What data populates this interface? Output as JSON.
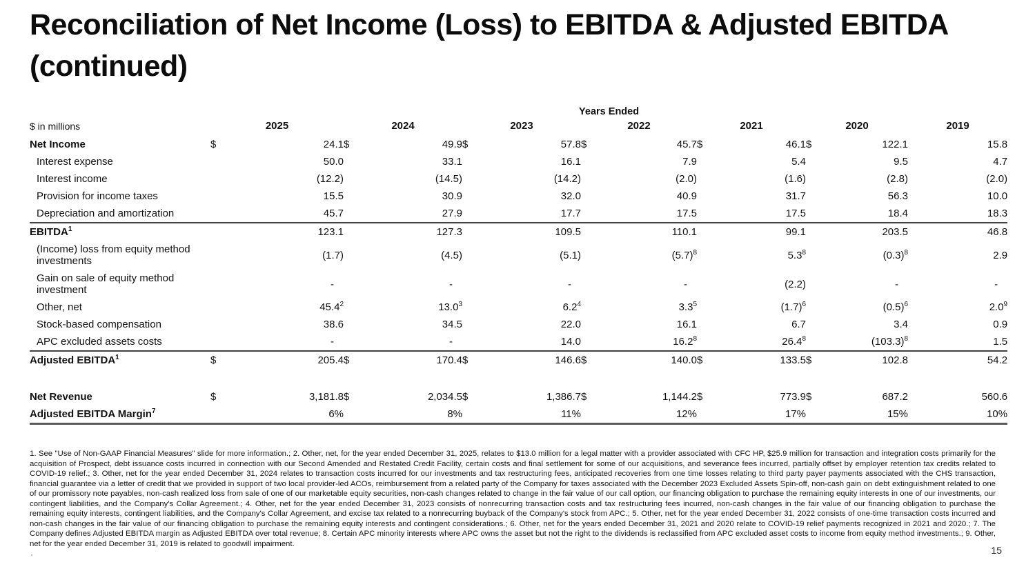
{
  "page": {
    "title": "Reconciliation of Net Income (Loss) to EBITDA & Adjusted EBITDA (continued)",
    "page_number": "15"
  },
  "table": {
    "units_label": "$ in millions",
    "group_header": "Years Ended",
    "currency_symbol": "$",
    "years": [
      "2025",
      "2024",
      "2023",
      "2022",
      "2021",
      "2020",
      "2019"
    ],
    "rows": [
      {
        "label": "Net Income",
        "bold": true,
        "dollar": true,
        "values": [
          "24.1",
          "49.9",
          "57.8",
          "45.7",
          "46.1",
          "122.1",
          "15.8"
        ]
      },
      {
        "label": "Interest expense",
        "indent": true,
        "values": [
          "50.0",
          "33.1",
          "16.1",
          "7.9",
          "5.4",
          "9.5",
          "4.7"
        ]
      },
      {
        "label": "Interest income",
        "indent": true,
        "values": [
          "(12.2)",
          "(14.5)",
          "(14.2)",
          "(2.0)",
          "(1.6)",
          "(2.8)",
          "(2.0)"
        ]
      },
      {
        "label": "Provision for income taxes",
        "indent": true,
        "values": [
          "15.5",
          "30.9",
          "32.0",
          "40.9",
          "31.7",
          "56.3",
          "10.0"
        ]
      },
      {
        "label": "Depreciation and amortization",
        "indent": true,
        "values": [
          "45.7",
          "27.9",
          "17.7",
          "17.5",
          "17.5",
          "18.4",
          "18.3"
        ]
      },
      {
        "label": "EBITDA",
        "label_sup": "1",
        "bold": true,
        "rule_above": true,
        "values": [
          "123.1",
          "127.3",
          "109.5",
          "110.1",
          "99.1",
          "203.5",
          "46.8"
        ]
      },
      {
        "label": "(Income) loss from equity method investments",
        "indent": true,
        "values": [
          "(1.7)",
          "(4.5)",
          "(5.1)",
          "(5.7)^8",
          "5.3^8",
          "(0.3)^8",
          "2.9"
        ]
      },
      {
        "label": "Gain on sale of equity method investment",
        "indent": true,
        "values": [
          "-",
          "-",
          "-",
          "-",
          "(2.2)",
          "-",
          "-"
        ]
      },
      {
        "label": "Other, net",
        "indent": true,
        "values": [
          "45.4^2",
          "13.0^3",
          "6.2^4",
          "3.3^5",
          "(1.7)^6",
          "(0.5)^6",
          "2.0^9"
        ]
      },
      {
        "label": "Stock-based compensation",
        "indent": true,
        "values": [
          "38.6",
          "34.5",
          "22.0",
          "16.1",
          "6.7",
          "3.4",
          "0.9"
        ]
      },
      {
        "label": "APC excluded assets costs",
        "indent": true,
        "values": [
          "-",
          "-",
          "14.0",
          "16.2^8",
          "26.4^8",
          "(103.3)^8",
          "1.5"
        ]
      },
      {
        "label": "Adjusted EBITDA",
        "label_sup": "1",
        "bold": true,
        "dollar": true,
        "rule_above": true,
        "values": [
          "205.4",
          "170.4",
          "146.6",
          "140.0",
          "133.5",
          "102.8",
          "54.2"
        ]
      },
      {
        "label": "Net Revenue",
        "bold": true,
        "dollar": true,
        "spacer_before": true,
        "values": [
          "3,181.8",
          "2,034.5",
          "1,386.7",
          "1,144.2",
          "773.9",
          "687.2",
          "560.6"
        ]
      },
      {
        "label": "Adjusted EBITDA Margin",
        "label_sup": "7",
        "bold": true,
        "rule_below_thick": true,
        "values": [
          "6%",
          "8%",
          "11%",
          "12%",
          "17%",
          "15%",
          "10%"
        ]
      }
    ]
  },
  "footnotes": {
    "text": "1. See \"Use of Non-GAAP Financial Measures\" slide for more information.; 2. Other, net, for the year ended December 31, 2025, relates to $13.0 million for a legal matter with a provider associated with CFC HP, $25.9 million for transaction and integration costs primarily for the acquisition of Prospect, debt issuance costs incurred in connection with our Second Amended and Restated Credit Facility, certain costs and final settlement for some of our acquisitions, and severance fees incurred, partially offset by employer retention tax credits related to COVID-19 relief.; 3. Other, net for the year ended December 31, 2024 relates to transaction costs incurred for our investments and tax restructuring fees, anticipated recoveries from one time losses relating to third party payer payments associated with the CHS transaction, financial guarantee via a letter of credit that we provided in support of two local provider-led ACOs, reimbursement from a related party of the Company for taxes associated with the December 2023 Excluded Assets Spin-off, non-cash gain on debt extinguishment related to one of our promissory note payables, non-cash realized loss from sale of one of our marketable equity securities, non-cash changes related to change in the fair value of our call option, our financing obligation to purchase the remaining equity interests in one of our investments, our contingent liabilities, and the Company's Collar Agreement.; 4. Other, net for the year ended December 31, 2023 consists of nonrecurring transaction costs and tax restructuring fees incurred, non-cash changes in the fair value of our financing obligation to purchase the remaining equity interests, contingent liabilities, and the Company's Collar Agreement, and excise tax related to a nonrecurring buyback of the Company's stock from APC.; 5. Other, net for the year ended December 31, 2022 consists of one-time transaction costs incurred and non-cash changes in the fair value of our financing obligation to purchase the remaining equity interests and contingent considerations.; 6. Other, net for the years ended December 31, 2021 and 2020 relate to COVID-19 relief payments recognized in 2021 and 2020.; 7. The Company defines Adjusted EBITDA margin as Adjusted EBITDA over total revenue; 8. Certain APC minority interests where APC owns the asset but not the right to the dividends is reclassified from APC excluded asset costs to income from equity method investments.; 9. Other, net for the year ended December 31, 2019 is related to goodwill impairment."
  }
}
